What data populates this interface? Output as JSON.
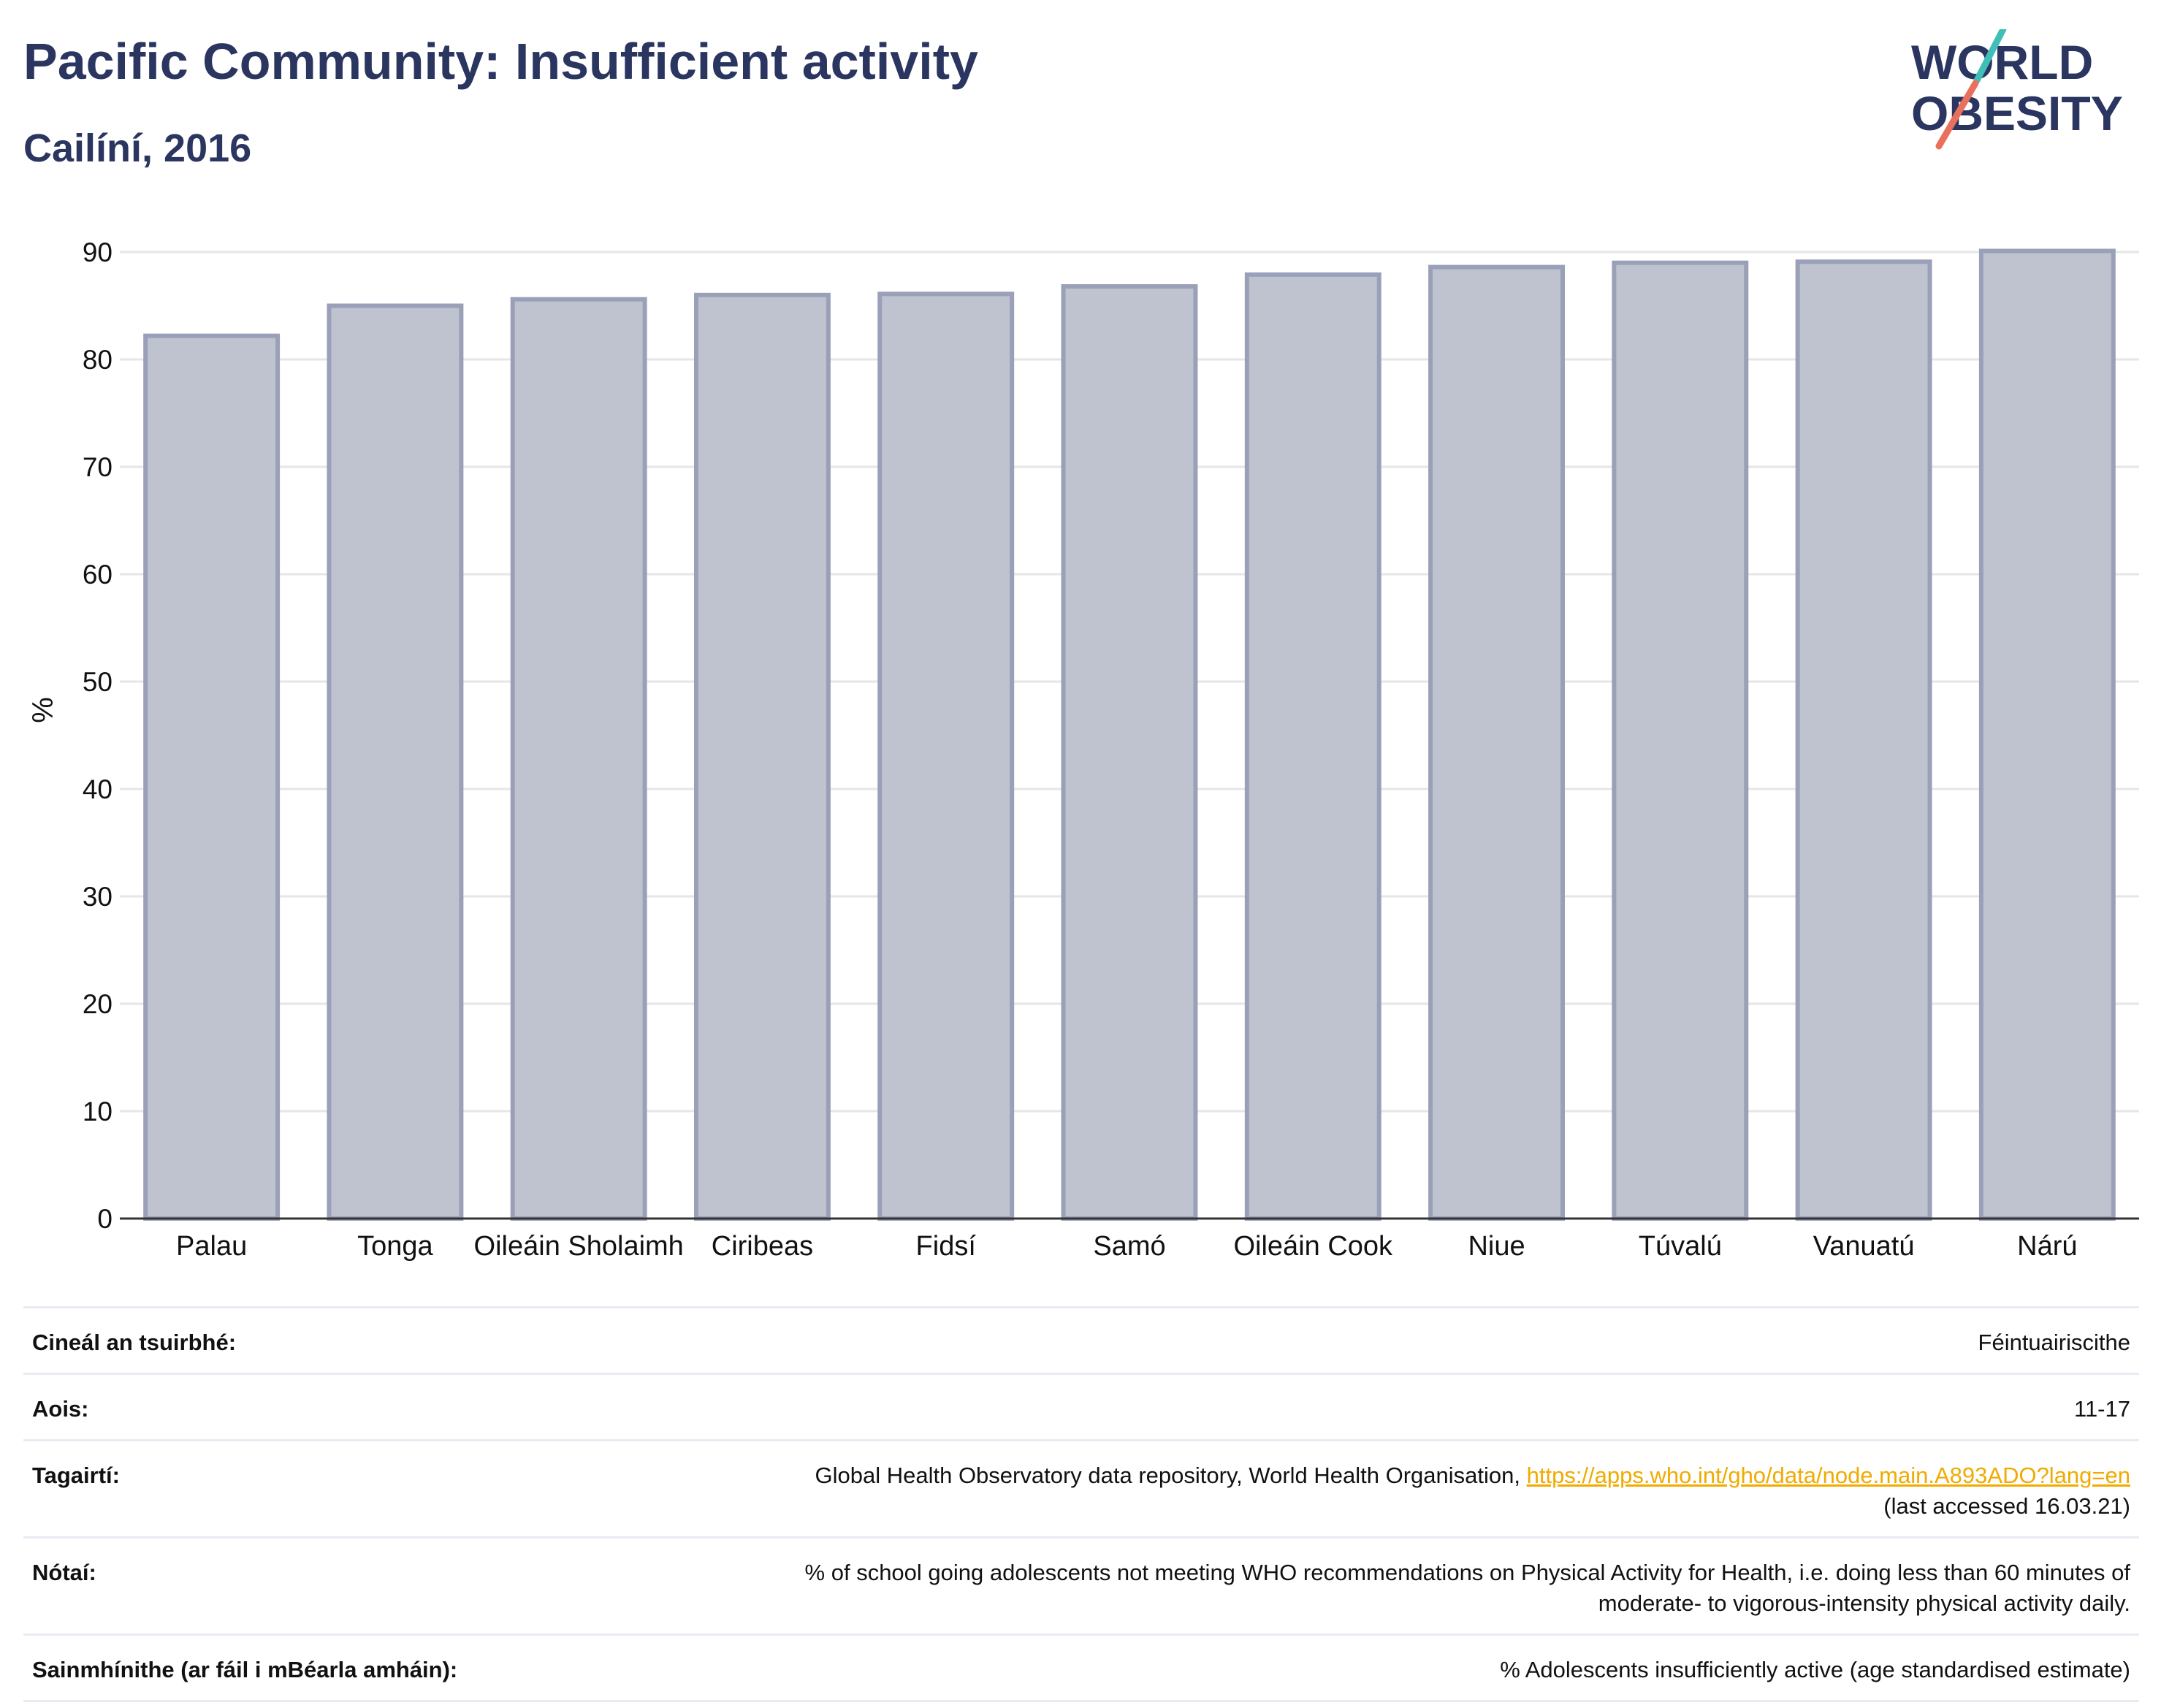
{
  "header": {
    "title": "Pacific Community: Insufficient activity",
    "subtitle": "Cailíní, 2016"
  },
  "logo": {
    "line1": "WORLD",
    "line2": "OBESITY",
    "slash_colors": [
      "#3fbfb8",
      "#e8705c"
    ],
    "text_color": "#2a3560"
  },
  "chart_data": {
    "type": "bar",
    "categories": [
      "Palau",
      "Tonga",
      "Oileáin Sholaimh",
      "Ciribeas",
      "Fidsí",
      "Samó",
      "Oileáin Cook",
      "Niue",
      "Túvalú",
      "Vanuatú",
      "Nárú"
    ],
    "values": [
      82.2,
      85,
      85.6,
      86,
      86.1,
      86.8,
      87.9,
      88.6,
      89,
      89.1,
      90.1
    ],
    "ylabel": "%",
    "ylim": [
      0,
      90
    ],
    "yticks": [
      0,
      10,
      20,
      30,
      40,
      50,
      60,
      70,
      80,
      90
    ],
    "grid": true,
    "bar_fill": "#bfc2cf",
    "bar_stroke": "#9aa0b8"
  },
  "info": {
    "rows": [
      {
        "label": "Cineál an tsuirbhé:",
        "value": "Féintuairiscithe"
      },
      {
        "label": "Aois:",
        "value": "11-17"
      },
      {
        "label": "Tagairtí:",
        "value": "Global Health Observatory data repository, World Health Organisation,",
        "link": "https://apps.who.int/gho/data/node.main.A893ADO?lang=en",
        "value2": "(last accessed 16.03.21)"
      },
      {
        "label": "Nótaí:",
        "value": "% of school going adolescents not meeting WHO recommendations on Physical Activity for Health, i.e. doing less than 60 minutes of",
        "value2": "moderate- to vigorous-intensity physical activity daily."
      },
      {
        "label": "Sainmhínithe (ar fáil i mBéarla amháin):",
        "value": "% Adolescents insufficiently active (age standardised estimate)"
      }
    ]
  }
}
